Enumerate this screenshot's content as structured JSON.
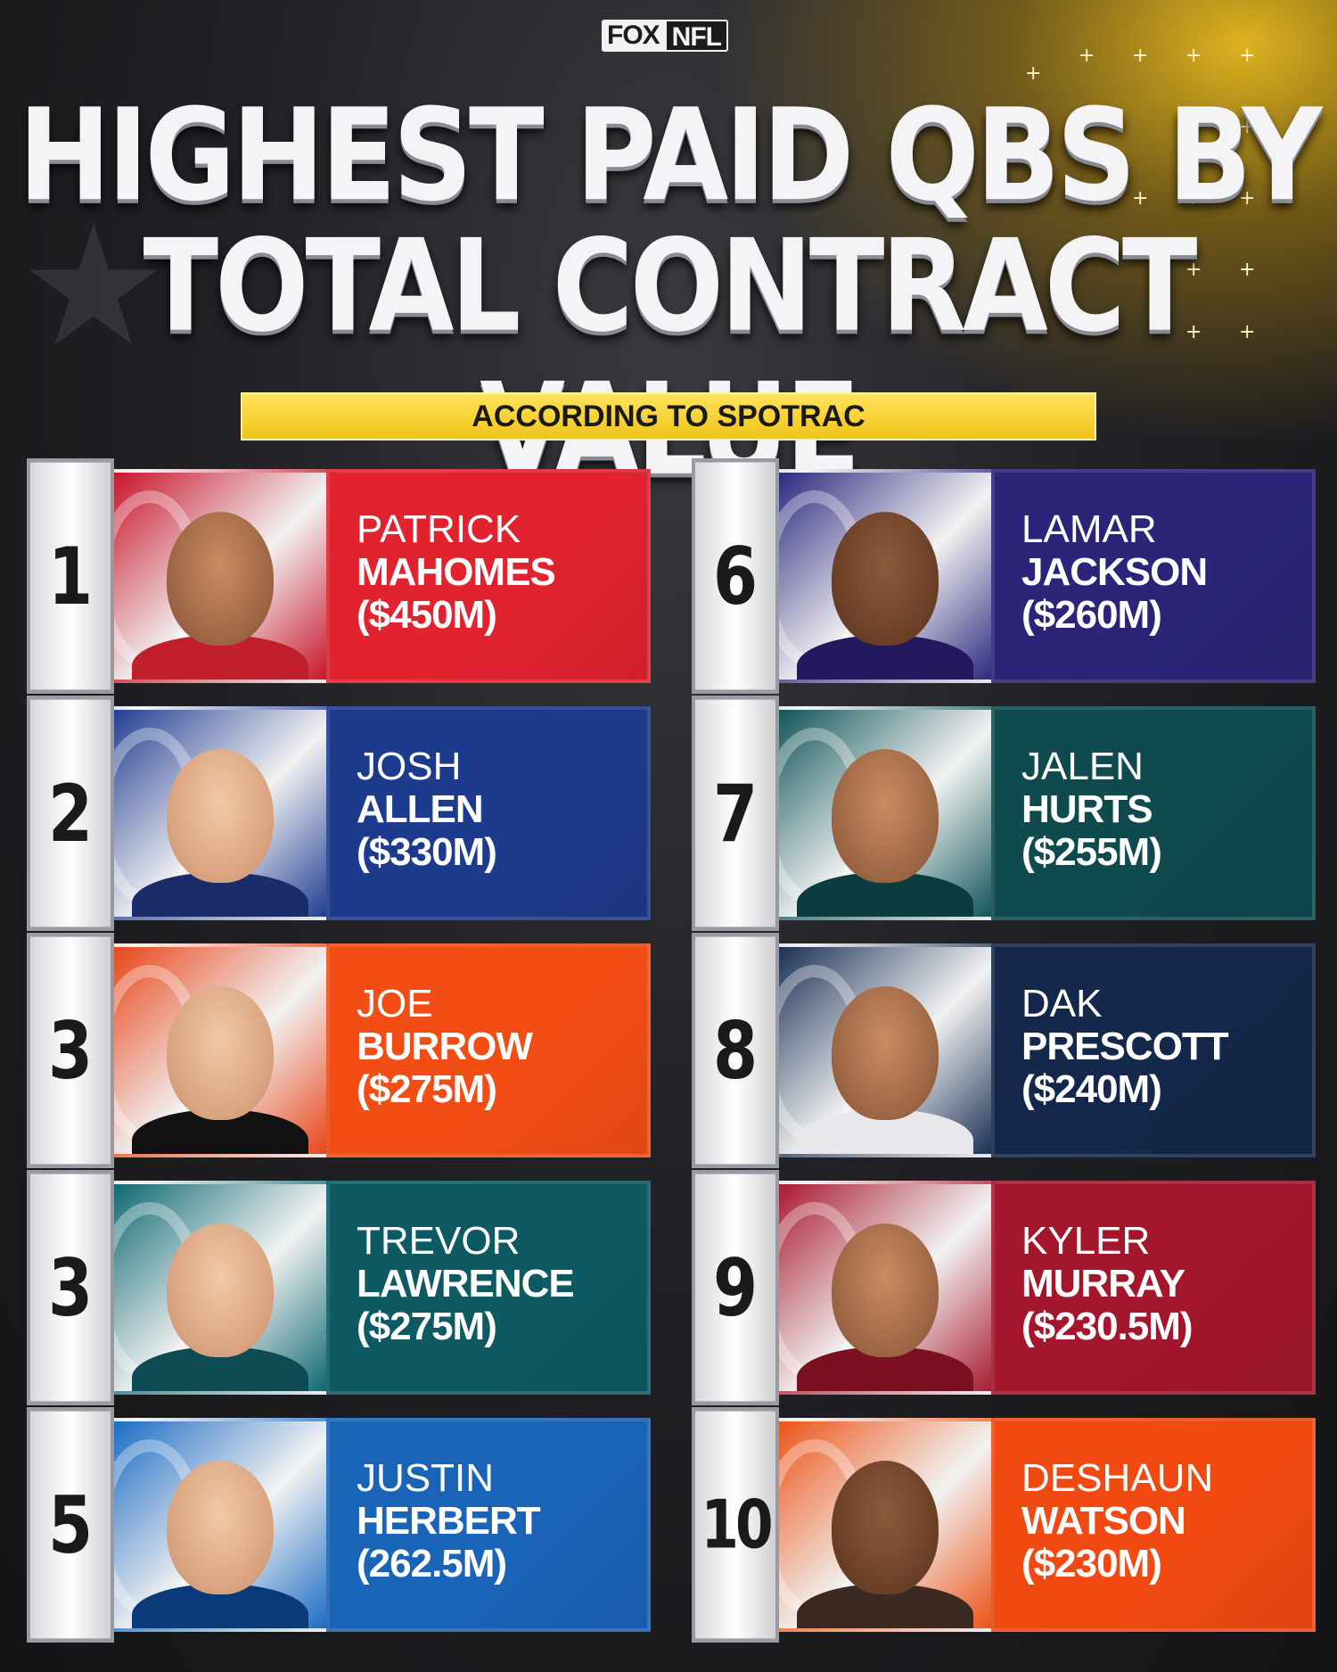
{
  "logo": {
    "fox": "FOX",
    "nfl": "NFL"
  },
  "title": {
    "line1": "HIGHEST PAID QBS BY",
    "line2": "TOTAL CONTRACT VALUE"
  },
  "subtitle": "ACCORDING TO SPOTRAC",
  "players": [
    {
      "rank": "1",
      "first": "PATRICK",
      "last": "MAHOMES",
      "value": "($450M)",
      "color": "#e0232f",
      "photo_bg": "#c8162a",
      "skin": "mid",
      "jersey": "#c11f2b"
    },
    {
      "rank": "2",
      "first": "JOSH",
      "last": "ALLEN",
      "value": "($330M)",
      "color": "#1d3b8c",
      "photo_bg": "#223f93",
      "skin": "light",
      "jersey": "#1a2c6a"
    },
    {
      "rank": "3",
      "first": "JOE",
      "last": "BURROW",
      "value": "($275M)",
      "color": "#f24d15",
      "photo_bg": "#e8461a",
      "skin": "light",
      "jersey": "#111111"
    },
    {
      "rank": "3",
      "first": "TREVOR",
      "last": "LAWRENCE",
      "value": "($275M)",
      "color": "#0d5a63",
      "photo_bg": "#0f6a72",
      "skin": "light",
      "jersey": "#0e4b55"
    },
    {
      "rank": "5",
      "first": "JUSTIN",
      "last": "HERBERT",
      "value": "(262.5M)",
      "color": "#1a64b8",
      "photo_bg": "#1c6cc4",
      "skin": "light",
      "jersey": "#0b3a7a"
    },
    {
      "rank": "6",
      "first": "LAMAR",
      "last": "JACKSON",
      "value": "($260M)",
      "color": "#2b2478",
      "photo_bg": "#2d2a80",
      "skin": "dark",
      "jersey": "#24195e"
    },
    {
      "rank": "7",
      "first": "JALEN",
      "last": "HURTS",
      "value": "($255M)",
      "color": "#0f4a4e",
      "photo_bg": "#12565a",
      "skin": "mid",
      "jersey": "#0c3c40"
    },
    {
      "rank": "8",
      "first": "DAK",
      "last": "PRESCOTT",
      "value": "($240M)",
      "color": "#13284a",
      "photo_bg": "#1a3156",
      "skin": "mid",
      "jersey": "#e8e8ec"
    },
    {
      "rank": "9",
      "first": "KYLER",
      "last": "MURRAY",
      "value": "($230.5M)",
      "color": "#a3162c",
      "photo_bg": "#a81b30",
      "skin": "mid",
      "jersey": "#7a1020"
    },
    {
      "rank": "10",
      "first": "DESHAUN",
      "last": "WATSON",
      "value": "($230M)",
      "color": "#f04a12",
      "photo_bg": "#ec5518",
      "skin": "dark",
      "jersey": "#3a2a22"
    }
  ]
}
